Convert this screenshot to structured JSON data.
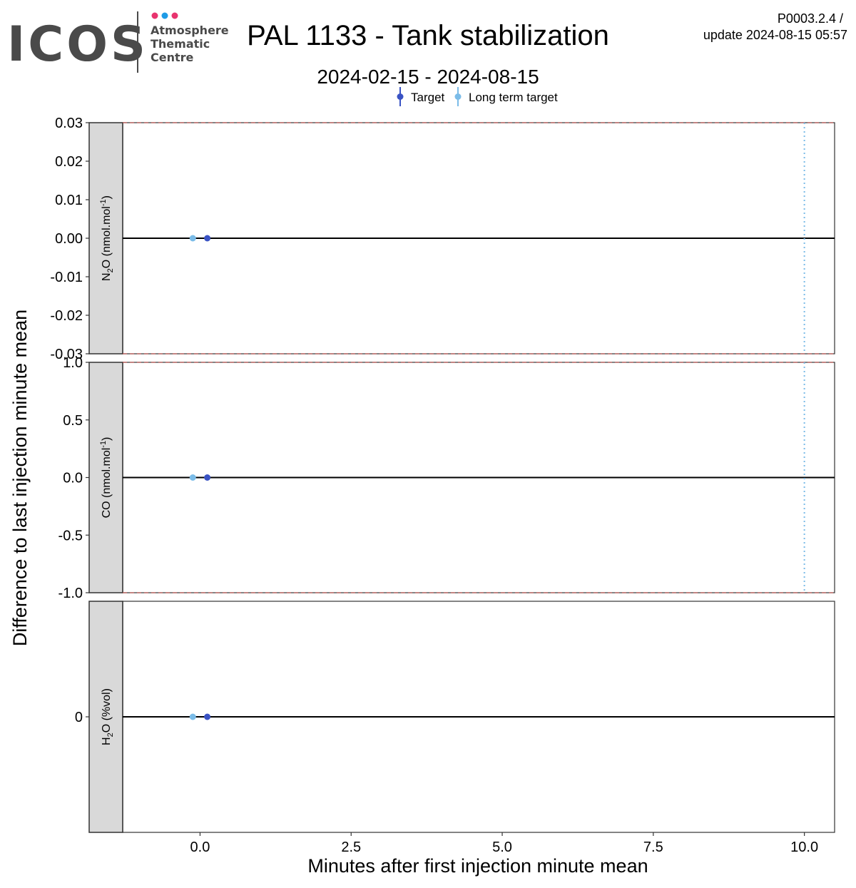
{
  "header": {
    "logo_text": "ICOS",
    "logo_sub": [
      "Atmosphere",
      "Thematic",
      "Centre"
    ],
    "title": "PAL 1133 - Tank stabilization",
    "subtitle": "2024-02-15 - 2024-08-15",
    "version": "P0003.2.4 /",
    "update": "update  2024-08-15 05:57"
  },
  "colors": {
    "logo_dots": [
      "#e8336e",
      "#1e9be6",
      "#e8336e"
    ],
    "logo_text": "#4a4a4a",
    "target": "#3a53c4",
    "long_term_target": "#7bbce8",
    "strip_bg": "#d9d9d9",
    "limit_line": "#b85450"
  },
  "chart_data": {
    "type": "scatter",
    "xlabel": "Minutes after first injection minute mean",
    "ylabel": "Difference to last injection minute mean",
    "xlim": [
      -1.28,
      10.5
    ],
    "xticks": [
      0,
      2.5,
      5,
      7.5,
      10
    ],
    "xtick_labels": [
      "0.0",
      "2.5",
      "5.0",
      "7.5",
      "10.0"
    ],
    "vline_x": 10,
    "legend": {
      "placement": "top",
      "entries": [
        "Target",
        "Long term target"
      ]
    },
    "series_names": [
      "Target",
      "Long term target"
    ],
    "panels": [
      {
        "strip_parts": [
          "N",
          "2",
          "O (nmol.mol",
          "-1",
          ")"
        ],
        "ylim": [
          -0.03,
          0.03
        ],
        "yticks": [
          0.03,
          0.02,
          0.01,
          0.0,
          -0.01,
          -0.02,
          -0.03
        ],
        "ytick_labels": [
          "0.03",
          "0.02",
          "0.01",
          "0.00",
          "-0.01",
          "-0.02",
          "-0.03"
        ],
        "limit_lines": [
          0.03,
          -0.03
        ],
        "vline": true,
        "points": [
          {
            "series": "Long term target",
            "x": -0.12,
            "y": 0
          },
          {
            "series": "Target",
            "x": 0.12,
            "y": 0
          }
        ]
      },
      {
        "strip_parts": [
          "CO (nmol.mol",
          "-1",
          ")"
        ],
        "ylim": [
          -1.0,
          1.0
        ],
        "yticks": [
          1.0,
          0.5,
          0.0,
          -0.5,
          -1.0
        ],
        "ytick_labels": [
          "1.0",
          "0.5",
          "0.0",
          "-0.5",
          "-1.0"
        ],
        "limit_lines": [
          1.0,
          -1.0
        ],
        "vline": true,
        "points": [
          {
            "series": "Long term target",
            "x": -0.12,
            "y": 0
          },
          {
            "series": "Target",
            "x": 0.12,
            "y": 0
          }
        ]
      },
      {
        "strip_parts": [
          "H",
          "2",
          "O (%vol)"
        ],
        "ylim": [
          -1,
          1
        ],
        "yticks": [
          0
        ],
        "ytick_labels": [
          "0"
        ],
        "limit_lines": [],
        "vline": false,
        "points": [
          {
            "series": "Long term target",
            "x": -0.12,
            "y": 0
          },
          {
            "series": "Target",
            "x": 0.12,
            "y": 0
          }
        ]
      }
    ]
  }
}
